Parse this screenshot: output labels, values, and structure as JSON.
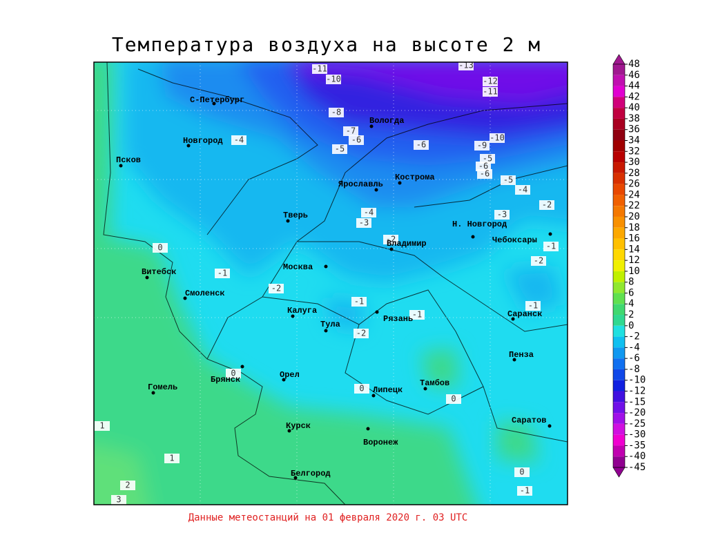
{
  "title": "Температура воздуха на высоте 2 м",
  "footer": "Данные метеостанций на 01 февраля 2020 г. 03 UTC",
  "cities": [
    "С-Петербург",
    "Новгород",
    "Псков",
    "Витебск",
    "Смоленск",
    "Москва",
    "Тверь",
    "Ярославль",
    "Кострома",
    "Вологда",
    "Владимир",
    "Н. Новгород",
    "Чебоксары",
    "Калуга",
    "Тула",
    "Рязань",
    "Брянск",
    "Орел",
    "Липецк",
    "Тамбов",
    "Гомель",
    "Курск",
    "Воронеж",
    "Белгород",
    "Саранск",
    "Пенза",
    "Саратов"
  ],
  "contour_labels": [
    -11,
    -10,
    -13,
    -12,
    -11,
    -8,
    -7,
    -6,
    -5,
    -4,
    -6,
    -9,
    -10,
    -5,
    -6,
    -6,
    -5,
    -4,
    -2,
    -3,
    -4,
    -3,
    -2,
    -1,
    -2,
    -1,
    -2,
    -1,
    -1,
    -1,
    -2,
    0,
    0,
    0,
    0,
    1,
    1,
    0,
    -1,
    2,
    3
  ],
  "legend": {
    "ticks": [
      48,
      46,
      44,
      42,
      40,
      38,
      36,
      34,
      32,
      30,
      28,
      26,
      24,
      22,
      20,
      18,
      16,
      14,
      12,
      10,
      8,
      6,
      4,
      2,
      0,
      -2,
      -4,
      -6,
      -8,
      -10,
      -12,
      -15,
      -20,
      -25,
      -30,
      -35,
      -40,
      -45
    ],
    "colors": [
      "#a01890",
      "#c010b0",
      "#e000d0",
      "#d0007a",
      "#c00040",
      "#a80020",
      "#900010",
      "#a00000",
      "#b80000",
      "#c81800",
      "#d83000",
      "#e84800",
      "#f06000",
      "#f47800",
      "#f89000",
      "#fca800",
      "#ffc000",
      "#ffd800",
      "#f0f000",
      "#c0f000",
      "#90e830",
      "#60e050",
      "#40d870",
      "#30d890",
      "#20e0e0",
      "#10c0f0",
      "#1098f0",
      "#1070f0",
      "#1048e8",
      "#1020e0",
      "#4010e0",
      "#7010e8",
      "#a010e8",
      "#d010e0",
      "#f000d0",
      "#c000b0",
      "#900090"
    ]
  }
}
